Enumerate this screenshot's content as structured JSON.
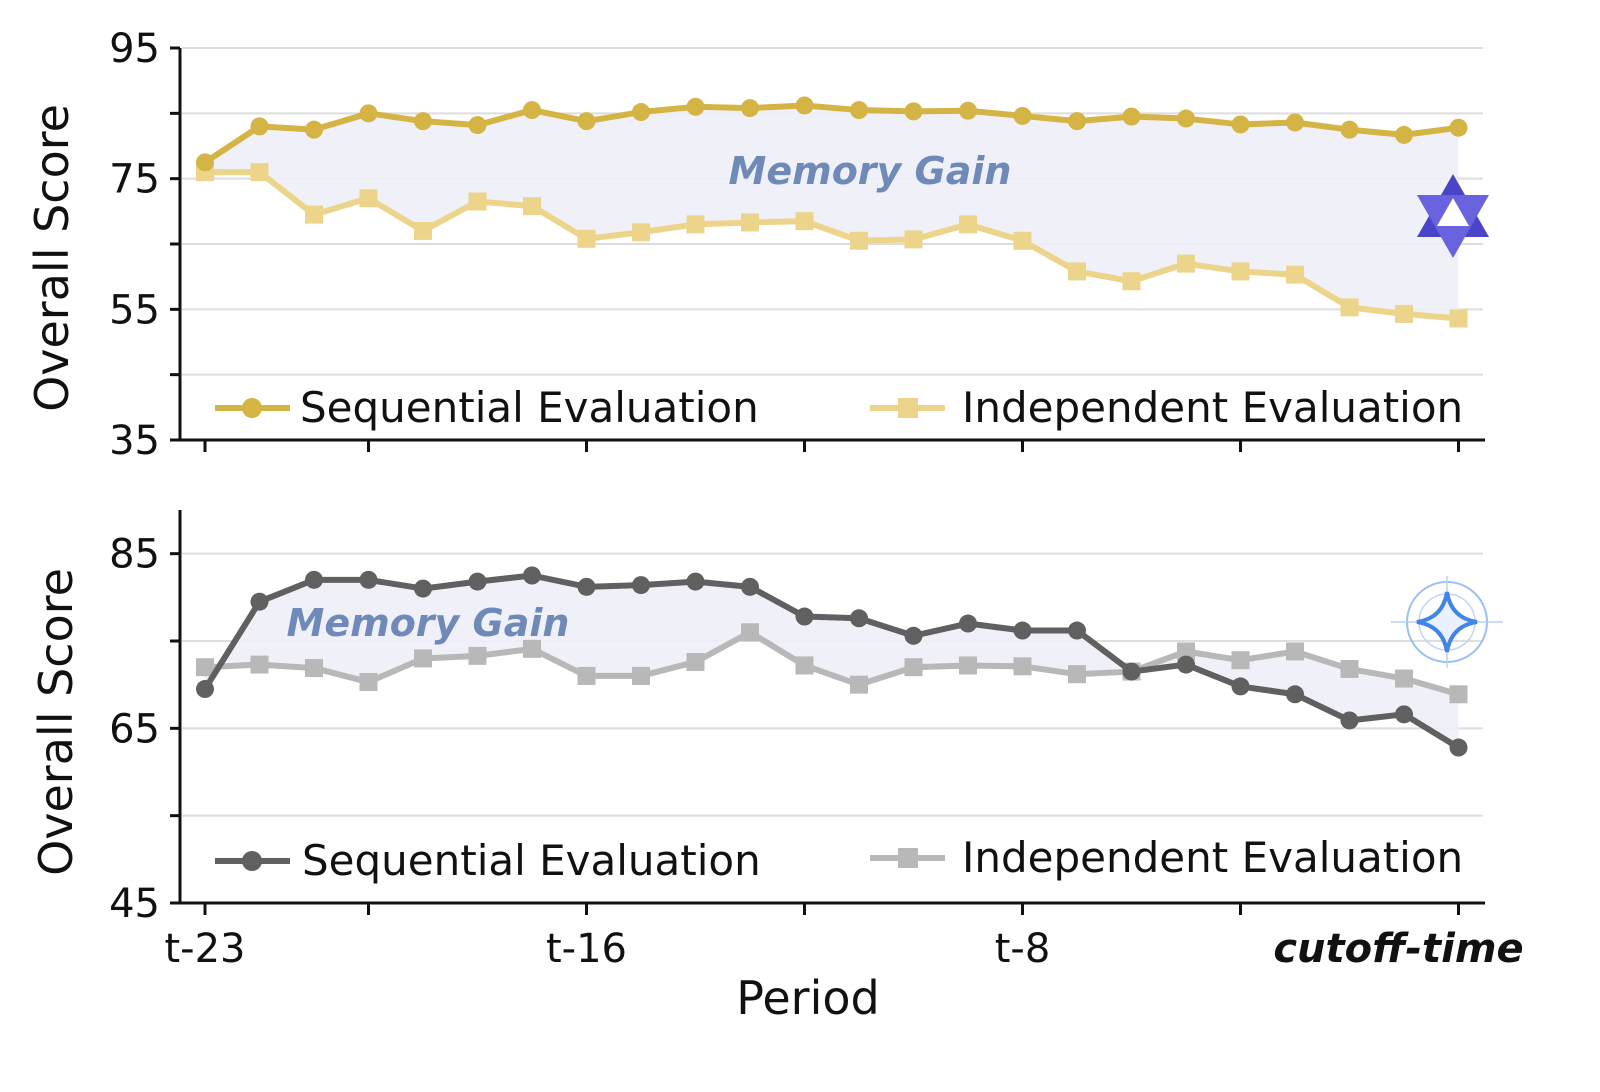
{
  "chart_data": [
    {
      "type": "line",
      "ylabel": "Overall Score",
      "ylim": [
        35,
        95
      ],
      "yticks": [
        35,
        55,
        75,
        95
      ],
      "ygrid": [
        45,
        55,
        65,
        75,
        85,
        95
      ],
      "grid": "horizontal",
      "legend_position": "bottom",
      "annotation": "Memory Gain",
      "logo_icon": "qwen-logo-icon",
      "colors": {
        "sequential": "#d4b444",
        "independent": "#ecd58b",
        "fill": "#eef0f7"
      },
      "series": [
        {
          "name": "Sequential Evaluation",
          "marker": "circle",
          "values": [
            77.5,
            83,
            82.5,
            85,
            83.8,
            83.2,
            85.5,
            83.8,
            85.2,
            86,
            85.8,
            86.2,
            85.5,
            85.3,
            85.4,
            84.6,
            83.8,
            84.5,
            84.2,
            83.3,
            83.6,
            82.5,
            81.7,
            82.8
          ]
        },
        {
          "name": "Independent Evaluation",
          "marker": "square",
          "values": [
            76,
            76,
            69.5,
            72,
            67,
            71.5,
            70.8,
            65.8,
            66.8,
            68,
            68.3,
            68.5,
            65.5,
            65.7,
            68,
            65.5,
            60.8,
            59.3,
            62,
            60.8,
            60.3,
            55.3,
            54.3,
            53.6
          ]
        }
      ]
    },
    {
      "type": "line",
      "xlabel": "Period",
      "ylabel": "Overall Score",
      "ylim": [
        45,
        90
      ],
      "yticks": [
        45,
        65,
        85
      ],
      "ygrid": [
        55,
        65,
        75,
        85
      ],
      "grid": "horizontal",
      "legend_position": "bottom",
      "annotation": "Memory Gain",
      "logo_icon": "gemini-sparkle-icon",
      "colors": {
        "sequential": "#606060",
        "independent": "#b8b8b8",
        "fill": "#eef0f7"
      },
      "x_tick_labels": [
        "t-23",
        "t-16",
        "t-8",
        "cutoff-time"
      ],
      "series": [
        {
          "name": "Sequential Evaluation",
          "marker": "circle",
          "values": [
            69.5,
            79.5,
            82,
            82,
            81,
            81.8,
            82.5,
            81.2,
            81.4,
            81.8,
            81.2,
            77.8,
            77.6,
            75.6,
            77,
            76.2,
            76.2,
            71.5,
            72.3,
            69.8,
            68.9,
            65.9,
            66.6,
            62.8
          ]
        },
        {
          "name": "Independent Evaluation",
          "marker": "square",
          "values": [
            72,
            72.3,
            71.9,
            70.3,
            73,
            73.3,
            74.1,
            71,
            71,
            72.6,
            76,
            72.2,
            70,
            72,
            72.2,
            72.1,
            71.2,
            71.5,
            73.8,
            72.8,
            73.8,
            71.8,
            70.7,
            68.9
          ]
        }
      ]
    }
  ]
}
